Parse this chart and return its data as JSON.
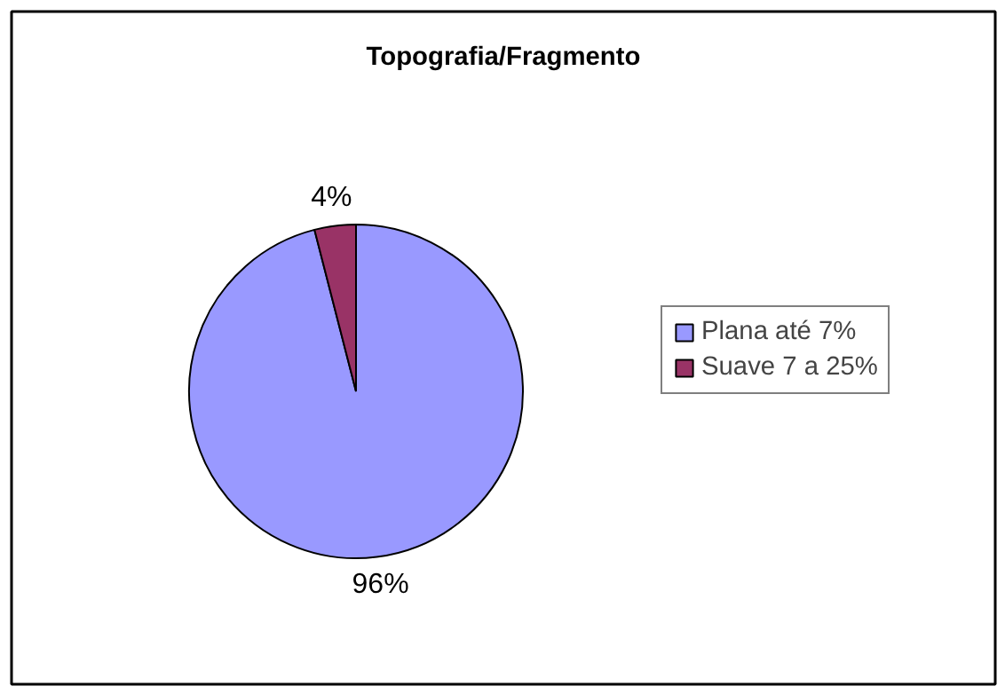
{
  "chart_data": {
    "type": "pie",
    "title": "Topografia/Fragmento",
    "categories": [
      "Plana até 7%",
      "Suave 7 a 25%"
    ],
    "values": [
      96,
      4
    ],
    "colors": [
      "#9999ff",
      "#993366"
    ],
    "value_labels": [
      "96%",
      "4%"
    ],
    "legend": "right"
  }
}
